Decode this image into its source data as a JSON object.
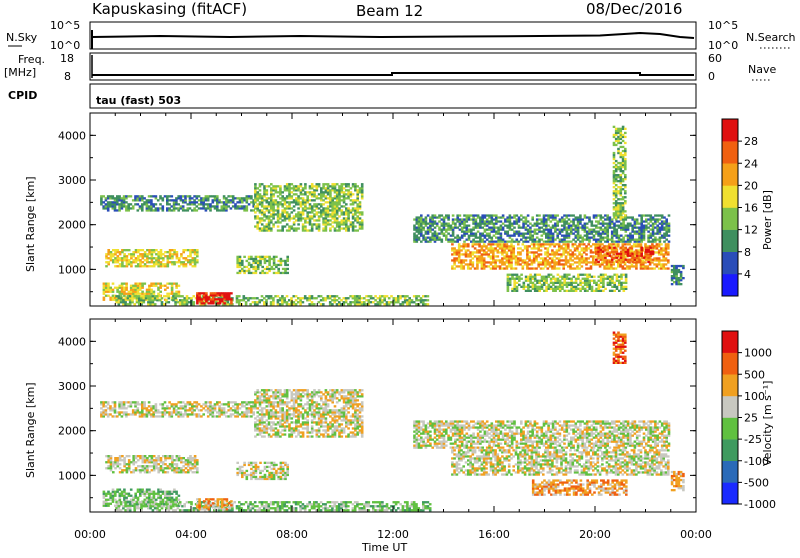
{
  "header": {
    "radar": "Kapuskasing (fitACF)",
    "beam": "Beam 12",
    "date": "08/Dec/2016"
  },
  "strips": {
    "nsky_label": "N.Sky",
    "nsky_ticks": [
      "10^5",
      "10^0"
    ],
    "nsearch_label": "N.Search",
    "nsearch_ticks": [
      "10^5",
      "10^0"
    ],
    "freq_label": "Freq.",
    "freq_unit": "[MHz]",
    "freq_ticks": [
      "18",
      "8"
    ],
    "nave_label": "Nave",
    "nave_ticks": [
      "60",
      "0"
    ],
    "cpid_label": "CPID",
    "cpid_text": "tau (fast) 503"
  },
  "chart_data": [
    {
      "type": "heatmap",
      "name": "power",
      "ylabel": "Slant Range [km]",
      "yticks": [
        1000,
        2000,
        3000,
        4000
      ],
      "ylim": [
        180,
        4500
      ],
      "xlim": [
        0,
        24
      ],
      "colorbar_label": "Power [dB]",
      "colorbar_ticks": [
        "4",
        "8",
        "12",
        "16",
        "20",
        "24",
        "28"
      ],
      "colors": [
        "#1a1aff",
        "#2a4db8",
        "#3f8f5f",
        "#7cc14a",
        "#f0e030",
        "#f5a018",
        "#f06010",
        "#e01010"
      ],
      "bands": [
        {
          "t0": 0.4,
          "t1": 6.5,
          "r0": 2300,
          "r1": 2620,
          "level": 2
        },
        {
          "t0": 6.5,
          "t1": 10.8,
          "r0": 1850,
          "r1": 2900,
          "level": 3
        },
        {
          "t0": 0.6,
          "t1": 4.2,
          "r0": 1050,
          "r1": 1450,
          "level": 4
        },
        {
          "t0": 5.8,
          "t1": 7.8,
          "r0": 900,
          "r1": 1300,
          "level": 3
        },
        {
          "t0": 0.5,
          "t1": 3.5,
          "r0": 300,
          "r1": 700,
          "level": 4
        },
        {
          "t0": 1.0,
          "t1": 13.5,
          "r0": 200,
          "r1": 400,
          "level": 3
        },
        {
          "t0": 4.2,
          "t1": 5.6,
          "r0": 220,
          "r1": 480,
          "level": 7
        },
        {
          "t0": 12.8,
          "t1": 22.9,
          "r0": 1600,
          "r1": 2200,
          "level": 2
        },
        {
          "t0": 14.3,
          "t1": 22.9,
          "r0": 1000,
          "r1": 1550,
          "level": 5
        },
        {
          "t0": 20.0,
          "t1": 22.3,
          "r0": 1150,
          "r1": 1500,
          "level": 6
        },
        {
          "t0": 16.5,
          "t1": 21.2,
          "r0": 500,
          "r1": 900,
          "level": 3
        },
        {
          "t0": 23.0,
          "t1": 23.5,
          "r0": 650,
          "r1": 1100,
          "level": 2
        },
        {
          "t0": 20.7,
          "t1": 21.2,
          "r0": 2100,
          "r1": 4200,
          "level": 3
        }
      ]
    },
    {
      "type": "heatmap",
      "name": "velocity",
      "ylabel": "Slant Range [km]",
      "yticks": [
        1000,
        2000,
        3000,
        4000
      ],
      "ylim": [
        180,
        4500
      ],
      "xlim": [
        0,
        24
      ],
      "xlabel": "Time UT",
      "xticks": [
        "00:00",
        "04:00",
        "08:00",
        "12:00",
        "16:00",
        "20:00",
        "00:00"
      ],
      "colorbar_label": "Velocity [m s⁻¹]",
      "colorbar_ticks": [
        "1000",
        "500",
        "100",
        "25",
        "-25",
        "-100",
        "-500",
        "-1000"
      ],
      "colors": [
        "#1a2aff",
        "#2a6ab8",
        "#3f9a5f",
        "#60c040",
        "#c8c8c0",
        "#f0a020",
        "#f06010",
        "#e01010"
      ],
      "bands": [
        {
          "t0": 0.4,
          "t1": 6.5,
          "r0": 2300,
          "r1": 2620,
          "level": 4
        },
        {
          "t0": 6.5,
          "t1": 10.8,
          "r0": 1850,
          "r1": 2900,
          "level": 4
        },
        {
          "t0": 0.6,
          "t1": 4.2,
          "r0": 1050,
          "r1": 1450,
          "level": 4
        },
        {
          "t0": 5.8,
          "t1": 7.8,
          "r0": 900,
          "r1": 1300,
          "level": 4
        },
        {
          "t0": 0.5,
          "t1": 3.5,
          "r0": 300,
          "r1": 700,
          "level": 3
        },
        {
          "t0": 1.0,
          "t1": 13.5,
          "r0": 200,
          "r1": 400,
          "level": 3
        },
        {
          "t0": 4.2,
          "t1": 5.6,
          "r0": 220,
          "r1": 480,
          "level": 5
        },
        {
          "t0": 12.8,
          "t1": 22.9,
          "r0": 1600,
          "r1": 2200,
          "level": 4
        },
        {
          "t0": 14.3,
          "t1": 22.9,
          "r0": 1000,
          "r1": 1550,
          "level": 4
        },
        {
          "t0": 17.5,
          "t1": 21.2,
          "r0": 550,
          "r1": 900,
          "level": 5
        },
        {
          "t0": 23.0,
          "t1": 23.5,
          "r0": 650,
          "r1": 1100,
          "level": 5
        },
        {
          "t0": 20.7,
          "t1": 21.2,
          "r0": 3500,
          "r1": 4200,
          "level": 6
        }
      ]
    }
  ]
}
